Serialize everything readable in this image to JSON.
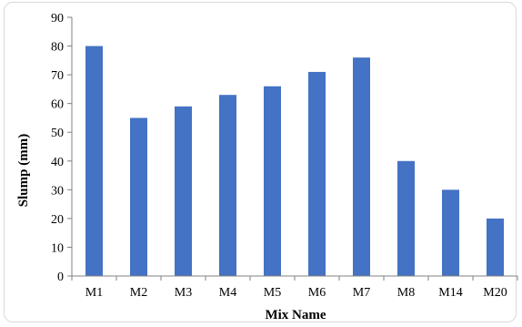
{
  "chart_data": {
    "type": "bar",
    "title": "",
    "xlabel": "Mix Name",
    "ylabel": "Slump (mm)",
    "categories": [
      "M1",
      "M2",
      "M3",
      "M4",
      "M5",
      "M6",
      "M7",
      "M8",
      "M14",
      "M20"
    ],
    "values": [
      80,
      55,
      59,
      63,
      66,
      71,
      76,
      40,
      30,
      20
    ],
    "ylim": [
      0,
      90
    ],
    "yticks": [
      "0",
      "10",
      "20",
      "30",
      "40",
      "50",
      "60",
      "70",
      "80",
      "90"
    ],
    "grid": false,
    "legend": "none",
    "bar_color": "#4472c4",
    "axis_color": "#808080"
  }
}
